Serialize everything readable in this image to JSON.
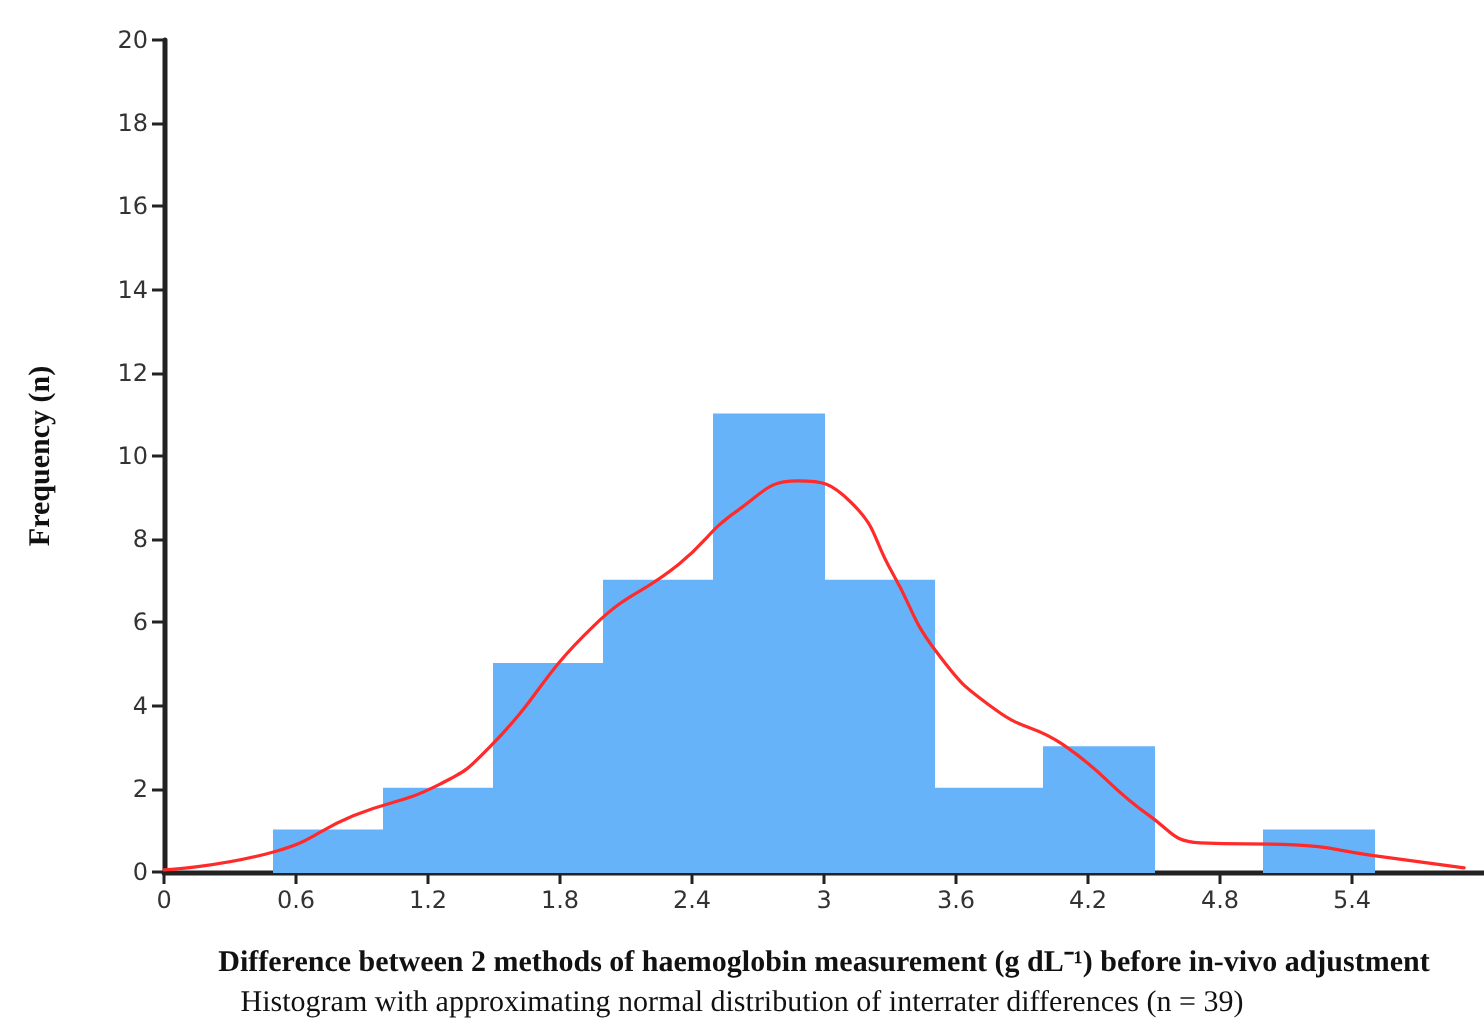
{
  "chart_data": {
    "type": "histogram",
    "xlabel": "Difference between 2 methods of haemoglobin measurement (g dL⁻¹) before in-vivo adjustment",
    "ylabel": "Frequency (n)",
    "annotations": [
      "Histogram with approximating normal distribution of interrater differences (n = 39)"
    ],
    "series": [
      {
        "color": "#66b3fa",
        "bins": [
          0.5,
          1.0,
          1.5,
          2.0,
          2.5,
          3.0,
          3.5,
          4.0,
          4.5,
          5.0,
          5.5
        ],
        "values": [
          1,
          2,
          5,
          7,
          11,
          7,
          2,
          3,
          0,
          1
        ]
      },
      {
        "type": "line",
        "color": "#ff2a2a",
        "marker": "none",
        "x": [
          0,
          0.51,
          0.86,
          1.25,
          1.48,
          1.95,
          2.34,
          2.61,
          2.88,
          3.12,
          3.31,
          3.51,
          3.78,
          4.09,
          4.48,
          4.71,
          5.14,
          5.49,
          5.91
        ],
        "values": [
          0.05,
          0.5,
          1.35,
          2.1,
          3.0,
          5.9,
          7.4,
          8.7,
          9.4,
          8.9,
          7.2,
          5.3,
          3.9,
          3.05,
          1.35,
          0.7,
          0.65,
          0.4,
          0.1
        ]
      }
    ],
    "xlim": [
      0,
      6
    ],
    "xticks": [
      0,
      0.6,
      1.2,
      1.8,
      2.4,
      3,
      3.6,
      4.2,
      4.8,
      5.4
    ],
    "ylim": [
      0,
      20
    ],
    "yticks": [
      0,
      2,
      4,
      6,
      8,
      10,
      12,
      14,
      16,
      18,
      20
    ],
    "grid": false
  }
}
